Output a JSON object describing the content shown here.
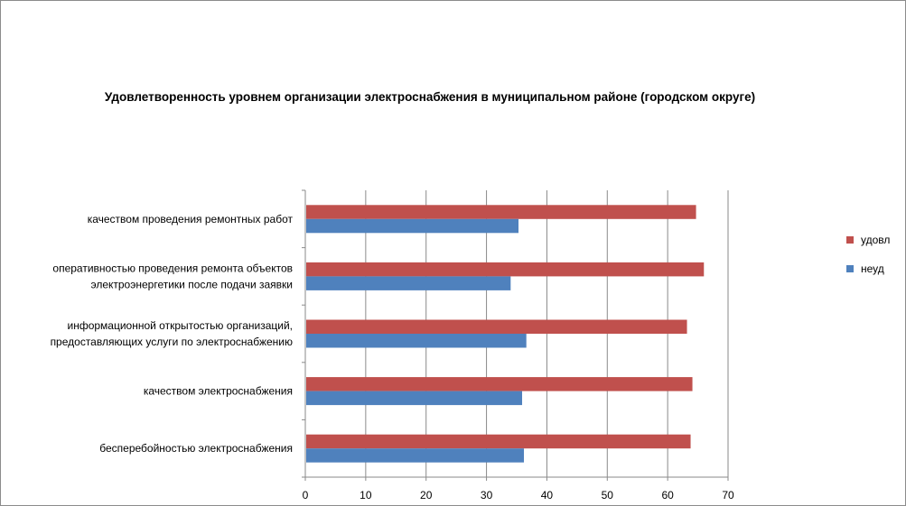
{
  "chart_data": {
    "type": "bar",
    "orientation": "horizontal",
    "title": "Удовлетворенность уровнем организации электроснабжения в муниципальном районе (городском округе)",
    "categories": [
      [
        "качеством проведения ремонтных работ"
      ],
      [
        "оперативностью проведения ремонта объектов",
        "электроэнергетики после подачи заявки"
      ],
      [
        "информационной открытостью организаций,",
        "предоставляющих услуги по электроснабжению"
      ],
      [
        "качеством электроснабжения"
      ],
      [
        "бесперебойностью электроснабжения"
      ]
    ],
    "series": [
      {
        "name": "удовл",
        "color": "#c0504d",
        "values": [
          64.7,
          66,
          63.2,
          64.1,
          63.8
        ]
      },
      {
        "name": "неуд",
        "color": "#4f81bd",
        "values": [
          35.3,
          34,
          36.6,
          35.9,
          36.2
        ]
      }
    ],
    "xlim": [
      0,
      70
    ],
    "xticks": [
      0,
      10,
      20,
      30,
      40,
      50,
      60,
      70
    ],
    "grid": true,
    "legend_position": "right"
  }
}
